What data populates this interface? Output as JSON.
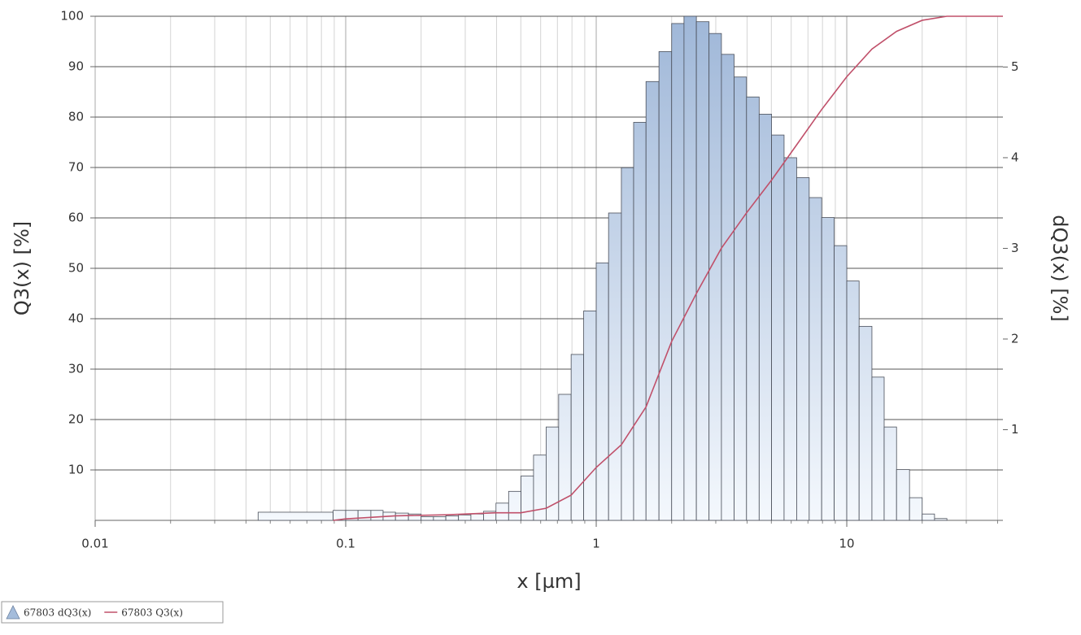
{
  "chart_data": {
    "type": "histogram",
    "x_label": "x [µm]",
    "y_label": "Q3(x) [%]",
    "y2_label": "dQ3(x) [%]",
    "log_x": true,
    "grid": true,
    "legend": "bottom-left",
    "xlim": [
      0.01,
      42
    ],
    "xticks": [
      0.01,
      0.1,
      1,
      10
    ],
    "ylim": [
      0,
      100
    ],
    "yticks": [
      10,
      20,
      30,
      40,
      50,
      60,
      70,
      80,
      90,
      100
    ],
    "y2lim": [
      0,
      5.56
    ],
    "y2ticks": [
      1,
      2,
      3,
      4,
      5
    ],
    "series": [
      {
        "name": "67803 dQ3(x)",
        "type": "histogram",
        "axis": "y2",
        "color": "#a4bcdb",
        "bins": [
          0.0447,
          0.0891,
          0.1,
          0.112,
          0.126,
          0.141,
          0.158,
          0.178,
          0.2,
          0.224,
          0.251,
          0.282,
          0.316,
          0.355,
          0.398,
          0.447,
          0.501,
          0.562,
          0.631,
          0.708,
          0.794,
          0.891,
          1,
          1.12,
          1.26,
          1.41,
          1.58,
          1.78,
          2,
          2.24,
          2.51,
          2.82,
          3.16,
          3.55,
          3.98,
          4.47,
          5.01,
          5.62,
          6.31,
          7.08,
          7.94,
          8.91,
          10,
          11.2,
          12.6,
          14.1,
          15.8,
          17.8,
          20,
          22.4,
          25.1
        ],
        "values": [
          0.09,
          0.11,
          0.11,
          0.11,
          0.11,
          0.09,
          0.08,
          0.07,
          0.04,
          0.04,
          0.05,
          0.06,
          0.07,
          0.1,
          0.19,
          0.32,
          0.49,
          0.72,
          1.03,
          1.39,
          1.83,
          2.31,
          2.84,
          3.39,
          3.89,
          4.39,
          4.84,
          5.17,
          5.48,
          5.56,
          5.5,
          5.37,
          5.14,
          4.89,
          4.67,
          4.48,
          4.25,
          4.0,
          3.78,
          3.56,
          3.34,
          3.03,
          2.64,
          2.14,
          1.58,
          1.03,
          0.56,
          0.25,
          0.07,
          0.02
        ]
      },
      {
        "name": "67803 Q3(x)",
        "type": "line",
        "axis": "y",
        "color": "#c0506a",
        "x": [
          0.0891,
          0.1,
          0.126,
          0.158,
          0.2,
          0.251,
          0.316,
          0.398,
          0.5,
          0.631,
          0.794,
          1,
          1.26,
          1.58,
          2,
          2.51,
          3.16,
          3.98,
          5.01,
          6.31,
          7.94,
          10,
          12.6,
          15.8,
          20,
          25.1,
          42
        ],
        "values": [
          0,
          0.3,
          0.6,
          0.9,
          1.0,
          1.1,
          1.3,
          1.5,
          1.5,
          2.4,
          5,
          10.5,
          15,
          22.5,
          35.5,
          45,
          54,
          61,
          67.5,
          74.5,
          81.5,
          88,
          93.5,
          97,
          99.2,
          100,
          100
        ]
      }
    ]
  }
}
